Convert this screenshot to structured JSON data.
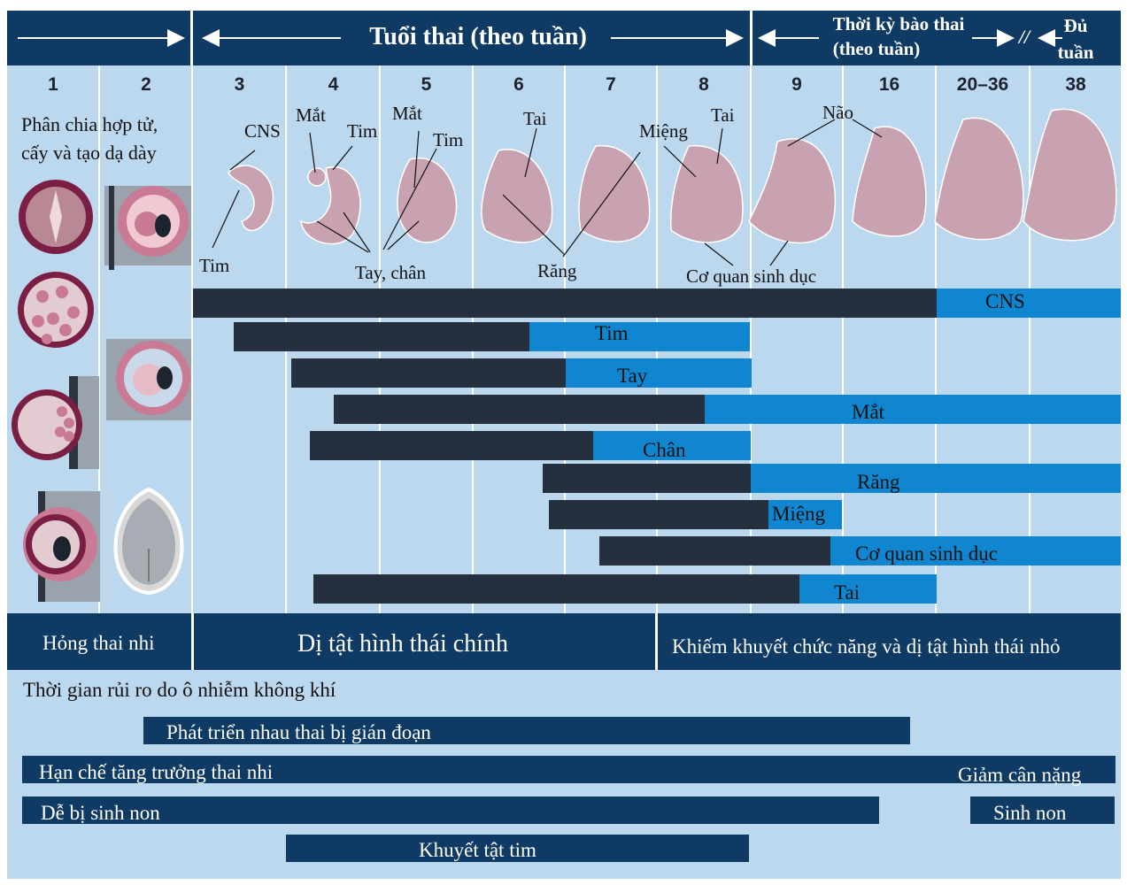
{
  "header": {
    "weeks_title": "Tuổi thai (theo tuần)",
    "fetal_title_line1": "Thời kỳ bào thai",
    "fetal_title_line2": "(theo tuần)",
    "term_line1": "Đủ",
    "term_line2": "tuần",
    "break_mark": "//"
  },
  "weeks": [
    "1",
    "2",
    "3",
    "4",
    "5",
    "6",
    "7",
    "8",
    "9",
    "16",
    "20–36",
    "38"
  ],
  "early_caption_line1": "Phân chia hợp tử,",
  "early_caption_line2": "cấy và tạo dạ dày",
  "embryo_labels": {
    "cns": "CNS",
    "eye_w4": "Mắt",
    "heart_w4": "Tim",
    "eye_w5": "Mắt",
    "heart_w5": "Tim",
    "ear_w6": "Tai",
    "mouth": "Miệng",
    "ear_w8": "Tai",
    "brain": "Não",
    "heart_bottom": "Tim",
    "limbs": "Tay, chân",
    "teeth": "Răng",
    "genitals": "Cơ quan sinh dục"
  },
  "organ_bars": [
    {
      "label": "CNS"
    },
    {
      "label": "Tim"
    },
    {
      "label": "Tay"
    },
    {
      "label": "Mắt"
    },
    {
      "label": "Chân"
    },
    {
      "label": "Răng"
    },
    {
      "label": "Miệng"
    },
    {
      "label": "Cơ quan sinh dục"
    },
    {
      "label": "Tai"
    }
  ],
  "categories": {
    "loss": "Hỏng thai nhi",
    "major": "Dị tật hình thái chính",
    "minor": "Khiếm khuyết chức năng và dị tật hình thái nhỏ"
  },
  "risk_title": "Thời gian rủi ro do ô nhiễm không khí",
  "risks": {
    "placenta": "Phát triển nhau thai bị gián đoạn",
    "growth": "Hạn chế tăng trưởng thai nhi",
    "low_weight": "Giảm cân nặng",
    "preterm_risk": "Dễ bị sinh non",
    "preterm": "Sinh non",
    "heart_defect": "Khuyết tật tim"
  },
  "colors": {
    "navy": "#0e3a63",
    "dark": "#25303f",
    "blue": "#0f86cf",
    "pale": "#bcd8ef",
    "embryo": "#c9a2b2"
  }
}
